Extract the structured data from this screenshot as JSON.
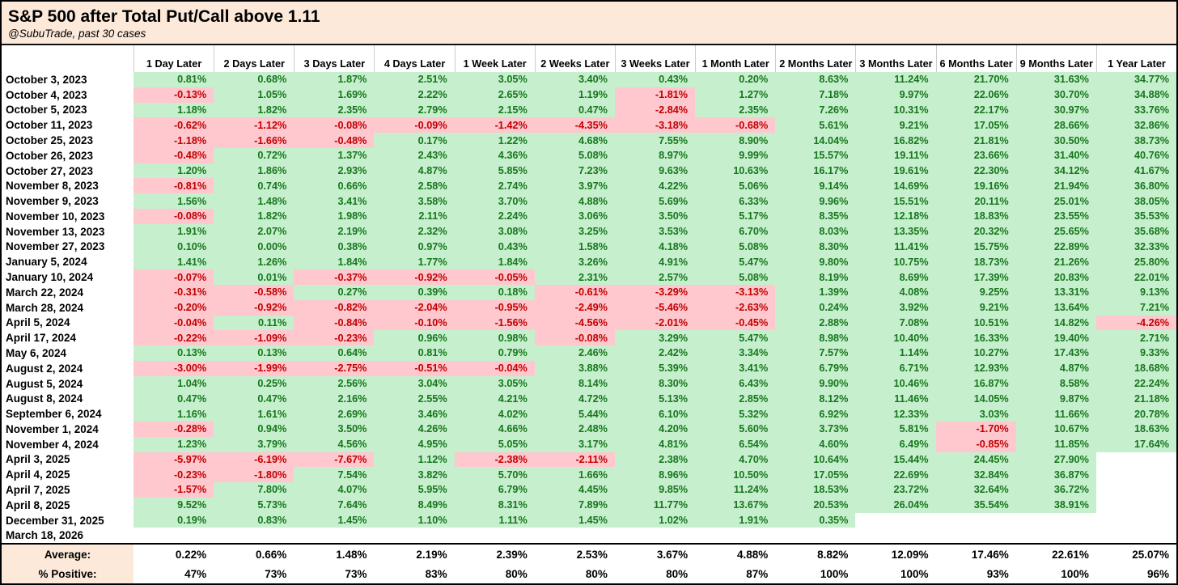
{
  "title": "S&P 500 after Total Put/Call above 1.11",
  "subtitle": "@SubuTrade, past 30 cases",
  "colors": {
    "title_bg": "#FCE9D9",
    "positive_bg": "#C6EFCE",
    "negative_bg": "#FFC7CE",
    "positive_text": "#17761C",
    "negative_text": "#C00000",
    "border": "#000000",
    "header_gridline": "#CCCCCC"
  },
  "chart_data": {
    "type": "table",
    "title": "S&P 500 after Total Put/Call above 1.11",
    "subtitle": "@SubuTrade, past 30 cases",
    "columns": [
      "1 Day Later",
      "2 Days Later",
      "3 Days Later",
      "4 Days Later",
      "1 Week Later",
      "2 Weeks Later",
      "3 Weeks Later",
      "1 Month Later",
      "2 Months Later",
      "3 Months Later",
      "6 Months Later",
      "9 Months Later",
      "1 Year Later"
    ],
    "value_unit": "%",
    "rows": [
      {
        "date": "October 3, 2023",
        "values": [
          0.81,
          0.68,
          1.87,
          2.51,
          3.05,
          3.4,
          0.43,
          0.2,
          8.63,
          11.24,
          21.7,
          31.63,
          34.77
        ]
      },
      {
        "date": "October 4, 2023",
        "values": [
          -0.13,
          1.05,
          1.69,
          2.22,
          2.65,
          1.19,
          -1.81,
          1.27,
          7.18,
          9.97,
          22.06,
          30.7,
          34.88
        ]
      },
      {
        "date": "October 5, 2023",
        "values": [
          1.18,
          1.82,
          2.35,
          2.79,
          2.15,
          0.47,
          -2.84,
          2.35,
          7.26,
          10.31,
          22.17,
          30.97,
          33.76
        ]
      },
      {
        "date": "October 11, 2023",
        "values": [
          -0.62,
          -1.12,
          -0.08,
          -0.09,
          -1.42,
          -4.35,
          -3.18,
          -0.68,
          5.61,
          9.21,
          17.05,
          28.66,
          32.86
        ]
      },
      {
        "date": "October 25, 2023",
        "values": [
          -1.18,
          -1.66,
          -0.48,
          0.17,
          1.22,
          4.68,
          7.55,
          8.9,
          14.04,
          16.82,
          21.81,
          30.5,
          38.73
        ]
      },
      {
        "date": "October 26, 2023",
        "values": [
          -0.48,
          0.72,
          1.37,
          2.43,
          4.36,
          5.08,
          8.97,
          9.99,
          15.57,
          19.11,
          23.66,
          31.4,
          40.76
        ]
      },
      {
        "date": "October 27, 2023",
        "values": [
          1.2,
          1.86,
          2.93,
          4.87,
          5.85,
          7.23,
          9.63,
          10.63,
          16.17,
          19.61,
          22.3,
          34.12,
          41.67
        ]
      },
      {
        "date": "November 8, 2023",
        "values": [
          -0.81,
          0.74,
          0.66,
          2.58,
          2.74,
          3.97,
          4.22,
          5.06,
          9.14,
          14.69,
          19.16,
          21.94,
          36.8
        ]
      },
      {
        "date": "November 9, 2023",
        "values": [
          1.56,
          1.48,
          3.41,
          3.58,
          3.7,
          4.88,
          5.69,
          6.33,
          9.96,
          15.51,
          20.11,
          25.01,
          38.05
        ]
      },
      {
        "date": "November 10, 2023",
        "values": [
          -0.08,
          1.82,
          1.98,
          2.11,
          2.24,
          3.06,
          3.5,
          5.17,
          8.35,
          12.18,
          18.83,
          23.55,
          35.53
        ]
      },
      {
        "date": "November 13, 2023",
        "values": [
          1.91,
          2.07,
          2.19,
          2.32,
          3.08,
          3.25,
          3.53,
          6.7,
          8.03,
          13.35,
          20.32,
          25.65,
          35.68
        ]
      },
      {
        "date": "November 27, 2023",
        "values": [
          0.1,
          0.0,
          0.38,
          0.97,
          0.43,
          1.58,
          4.18,
          5.08,
          8.3,
          11.41,
          15.75,
          22.89,
          32.33
        ]
      },
      {
        "date": "January 5, 2024",
        "values": [
          1.41,
          1.26,
          1.84,
          1.77,
          1.84,
          3.26,
          4.91,
          5.47,
          9.8,
          10.75,
          18.73,
          21.26,
          25.8
        ]
      },
      {
        "date": "January 10, 2024",
        "values": [
          -0.07,
          0.01,
          -0.37,
          -0.92,
          -0.05,
          2.31,
          2.57,
          5.08,
          8.19,
          8.69,
          17.39,
          20.83,
          22.01
        ]
      },
      {
        "date": "March 22, 2024",
        "values": [
          -0.31,
          -0.58,
          0.27,
          0.39,
          0.18,
          -0.61,
          -3.29,
          -3.13,
          1.39,
          4.08,
          9.25,
          13.31,
          9.13
        ]
      },
      {
        "date": "March 28, 2024",
        "values": [
          -0.2,
          -0.92,
          -0.82,
          -2.04,
          -0.95,
          -2.49,
          -5.46,
          -2.63,
          0.24,
          3.92,
          9.21,
          13.64,
          7.21
        ]
      },
      {
        "date": "April 5, 2024",
        "values": [
          -0.04,
          0.11,
          -0.84,
          -0.1,
          -1.56,
          -4.56,
          -2.01,
          -0.45,
          2.88,
          7.08,
          10.51,
          14.82,
          -4.26
        ]
      },
      {
        "date": "April 17, 2024",
        "values": [
          -0.22,
          -1.09,
          -0.23,
          0.96,
          0.98,
          -0.08,
          3.29,
          5.47,
          8.98,
          10.4,
          16.33,
          19.4,
          2.71
        ]
      },
      {
        "date": "May 6, 2024",
        "values": [
          0.13,
          0.13,
          0.64,
          0.81,
          0.79,
          2.46,
          2.42,
          3.34,
          7.57,
          1.14,
          10.27,
          17.43,
          9.33
        ]
      },
      {
        "date": "August 2, 2024",
        "values": [
          -3.0,
          -1.99,
          -2.75,
          -0.51,
          -0.04,
          3.88,
          5.39,
          3.41,
          6.79,
          6.71,
          12.93,
          4.87,
          18.68
        ]
      },
      {
        "date": "August 5, 2024",
        "values": [
          1.04,
          0.25,
          2.56,
          3.04,
          3.05,
          8.14,
          8.3,
          6.43,
          9.9,
          10.46,
          16.87,
          8.58,
          22.24
        ]
      },
      {
        "date": "August 8, 2024",
        "values": [
          0.47,
          0.47,
          2.16,
          2.55,
          4.21,
          4.72,
          5.13,
          2.85,
          8.12,
          11.46,
          14.05,
          9.87,
          21.18
        ]
      },
      {
        "date": "September 6, 2024",
        "values": [
          1.16,
          1.61,
          2.69,
          3.46,
          4.02,
          5.44,
          6.1,
          5.32,
          6.92,
          12.33,
          3.03,
          11.66,
          20.78
        ]
      },
      {
        "date": "November 1, 2024",
        "values": [
          -0.28,
          0.94,
          3.5,
          4.26,
          4.66,
          2.48,
          4.2,
          5.6,
          3.73,
          5.81,
          -1.7,
          10.67,
          18.63
        ]
      },
      {
        "date": "November 4, 2024",
        "values": [
          1.23,
          3.79,
          4.56,
          4.95,
          5.05,
          3.17,
          4.81,
          6.54,
          4.6,
          6.49,
          -0.85,
          11.85,
          17.64
        ]
      },
      {
        "date": "April 3, 2025",
        "values": [
          -5.97,
          -6.19,
          -7.67,
          1.12,
          -2.38,
          -2.11,
          2.38,
          4.7,
          10.64,
          15.44,
          24.45,
          27.9,
          null
        ]
      },
      {
        "date": "April 4, 2025",
        "values": [
          -0.23,
          -1.8,
          7.54,
          3.82,
          5.7,
          1.66,
          8.96,
          10.5,
          17.05,
          22.69,
          32.84,
          36.87,
          null
        ]
      },
      {
        "date": "April 7, 2025",
        "values": [
          -1.57,
          7.8,
          4.07,
          5.95,
          6.79,
          4.45,
          9.85,
          11.24,
          18.53,
          23.72,
          32.64,
          36.72,
          null
        ]
      },
      {
        "date": "April 8, 2025",
        "values": [
          9.52,
          5.73,
          7.64,
          8.49,
          8.31,
          7.89,
          11.77,
          13.67,
          20.53,
          26.04,
          35.54,
          38.91,
          null
        ]
      },
      {
        "date": "December 31, 2025",
        "values": [
          0.19,
          0.83,
          1.45,
          1.1,
          1.11,
          1.45,
          1.02,
          1.91,
          0.35,
          null,
          null,
          null,
          null
        ]
      },
      {
        "date": "March 18, 2026",
        "values": [
          null,
          null,
          null,
          null,
          null,
          null,
          null,
          null,
          null,
          null,
          null,
          null,
          null
        ]
      }
    ],
    "footer": {
      "average_label": "Average:",
      "average": [
        0.22,
        0.66,
        1.48,
        2.19,
        2.39,
        2.53,
        3.67,
        4.88,
        8.82,
        12.09,
        17.46,
        22.61,
        25.07
      ],
      "positive_label": "% Positive:",
      "positive": [
        47,
        73,
        73,
        83,
        80,
        80,
        80,
        87,
        100,
        100,
        93,
        100,
        96
      ]
    }
  }
}
